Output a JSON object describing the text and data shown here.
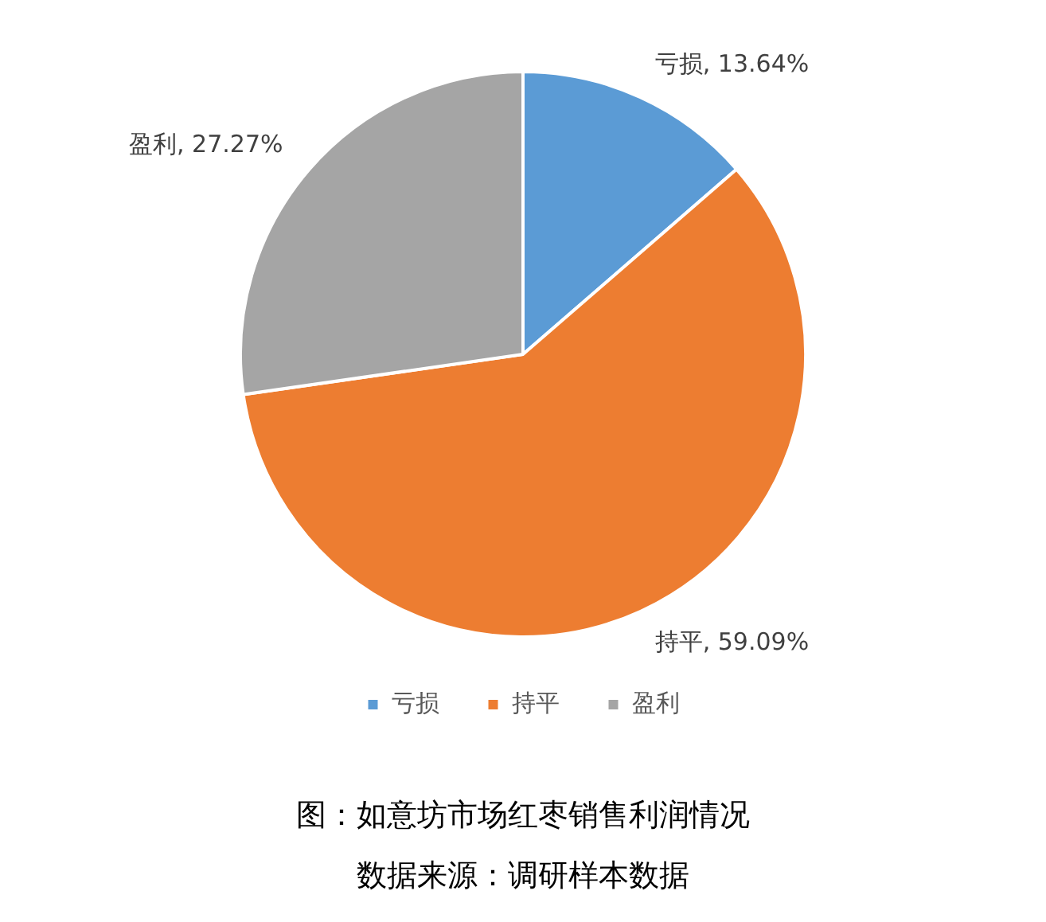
{
  "chart_data": {
    "type": "pie",
    "categories": [
      "亏损",
      "持平",
      "盈利"
    ],
    "values": [
      13.64,
      59.09,
      27.27
    ],
    "colors": [
      "#5b9bd5",
      "#ed7d31",
      "#a5a5a5"
    ],
    "value_labels": [
      "亏损, 13.64%",
      "持平, 59.09%",
      "盈利, 27.27%"
    ],
    "legend": "bottom",
    "annotations": [
      "图：如意坊市场红枣销售利润情况",
      "数据来源：调研样本数据"
    ]
  }
}
